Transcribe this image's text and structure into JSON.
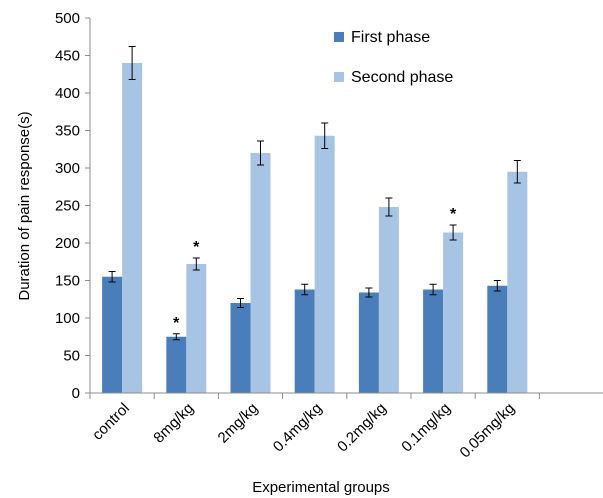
{
  "chart_data": {
    "type": "bar",
    "title": "",
    "xlabel": "Experimental groups",
    "ylabel": "Duration of pain response(s)",
    "ylim": [
      0,
      500
    ],
    "yticks": [
      0,
      50,
      100,
      150,
      200,
      250,
      300,
      350,
      400,
      450,
      500
    ],
    "grid": false,
    "legend_position": "top-right",
    "categories": [
      "control",
      "8mg/kg",
      "2mg/kg",
      "0.4mg/kg",
      "0.2mg/kg",
      "0.1mg/kg",
      "0.05mg/kg"
    ],
    "empty_trailing_slots": 1,
    "series": [
      {
        "name": "First phase",
        "color": "#4a7ebb",
        "values": [
          155,
          75,
          120,
          138,
          134,
          138,
          143
        ],
        "errors": [
          7,
          4,
          6,
          7,
          6,
          7,
          7
        ],
        "significance": [
          "",
          "*",
          "",
          "",
          "",
          "",
          ""
        ]
      },
      {
        "name": "Second phase",
        "color": "#a7c4e5",
        "values": [
          440,
          172,
          320,
          343,
          248,
          214,
          295
        ],
        "errors": [
          22,
          8,
          16,
          17,
          12,
          10,
          15
        ],
        "significance": [
          "",
          "*",
          "",
          "",
          "",
          "*",
          ""
        ]
      }
    ]
  }
}
